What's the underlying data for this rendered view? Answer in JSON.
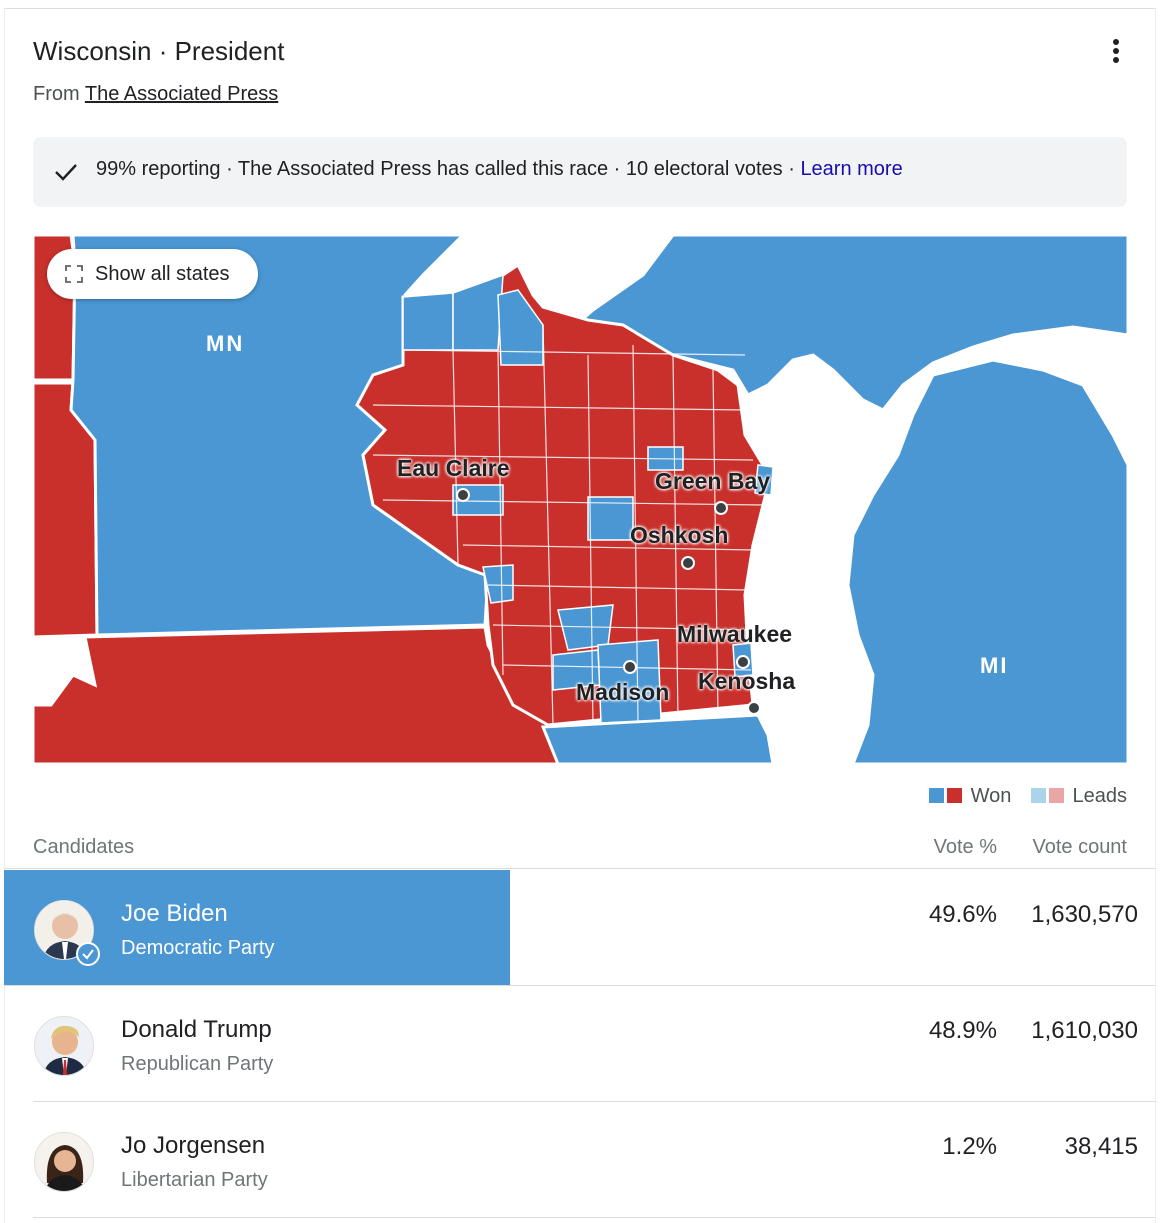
{
  "header": {
    "title": "Wisconsin · President",
    "source_prefix": "From",
    "source_link": "The Associated Press"
  },
  "status": {
    "text": "99% reporting · The Associated Press has called this race · 10 electoral votes · ",
    "learn_more": "Learn more"
  },
  "map": {
    "show_all_states": "Show all states",
    "state_labels": {
      "mn": "MN",
      "mi": "MI"
    },
    "cities": {
      "eau_claire": "Eau Claire",
      "green_bay": "Green Bay",
      "oshkosh": "Oshkosh",
      "milwaukee": "Milwaukee",
      "madison": "Madison",
      "kenosha": "Kenosha"
    },
    "colors": {
      "dem": "#4a97d3",
      "rep": "#c9302c",
      "dem_lead": "#a9d4ea",
      "rep_lead": "#e8a7a5"
    }
  },
  "legend": {
    "won": "Won",
    "leads": "Leads"
  },
  "table": {
    "col_candidates": "Candidates",
    "col_vote_pct": "Vote %",
    "col_vote_count": "Vote count",
    "rows": [
      {
        "name": "Joe Biden",
        "party": "Democratic Party",
        "pct": "49.6%",
        "count": "1,630,570",
        "winner": true,
        "share": 0.496
      },
      {
        "name": "Donald Trump",
        "party": "Republican Party",
        "pct": "48.9%",
        "count": "1,610,030",
        "winner": false,
        "share": 0.489
      },
      {
        "name": "Jo Jorgensen",
        "party": "Libertarian Party",
        "pct": "1.2%",
        "count": "38,415",
        "winner": false,
        "share": 0.012
      }
    ]
  }
}
